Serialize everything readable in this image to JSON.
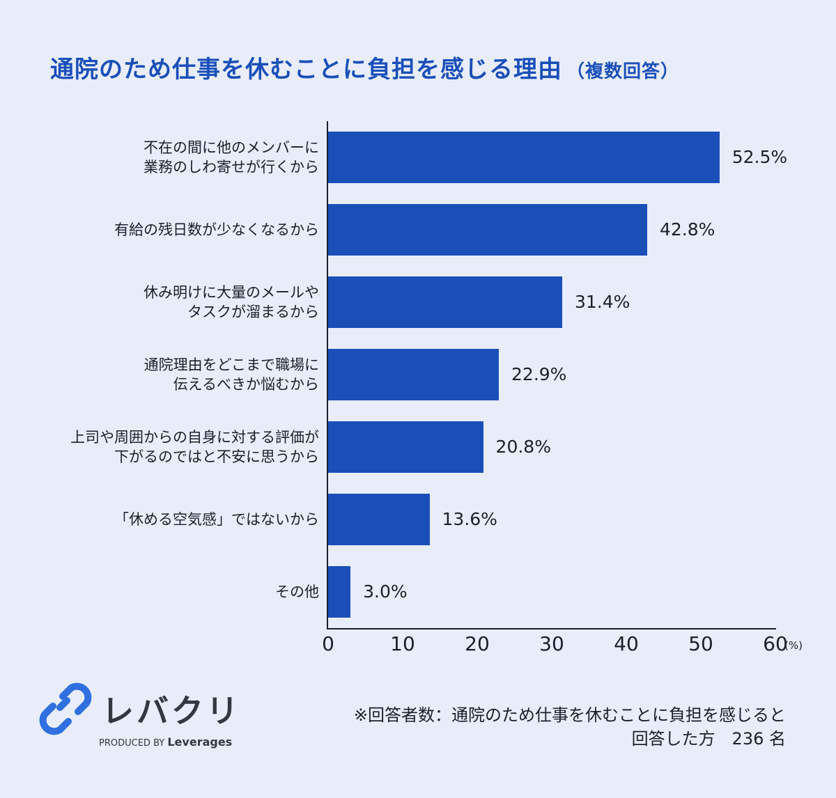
{
  "header": {
    "title": "通院のため仕事を休むことに負担を感じる理由",
    "subtitle": "（複数回答）"
  },
  "chart_data": {
    "type": "bar",
    "orientation": "horizontal",
    "title": "通院のため仕事を休むことに負担を感じる理由（複数回答）",
    "categories": [
      [
        "不在の間に他のメンバーに",
        "業務のしわ寄せが行くから"
      ],
      [
        "有給の残日数が少なくなるから"
      ],
      [
        "休み明けに大量のメールや",
        "タスクが溜まるから"
      ],
      [
        "通院理由をどこまで職場に",
        "伝えるべきか悩むから"
      ],
      [
        "上司や周囲からの自身に対する評価が",
        "下がるのではと不安に思うから"
      ],
      [
        "「休める空気感」ではないから"
      ],
      [
        "その他"
      ]
    ],
    "values": [
      52.5,
      42.8,
      31.4,
      22.9,
      20.8,
      13.6,
      3.0
    ],
    "value_labels": [
      "52.5%",
      "42.8%",
      "31.4%",
      "22.9%",
      "20.8%",
      "13.6%",
      "3.0%"
    ],
    "xlabel": "(%)",
    "ylabel": "",
    "xlim": [
      0,
      60
    ],
    "xticks": [
      "0",
      "10",
      "20",
      "30",
      "40",
      "50",
      "60"
    ],
    "grid": false,
    "legend": null,
    "bar_color": "#1a4fb8"
  },
  "footer": {
    "logo_text": "レバクリ",
    "produced_by": "PRODUCED BY",
    "brand": "Leverages",
    "note_line1": "※回答者数：通院のため仕事を休むことに負担を感じると",
    "note_line2": "回答した方　236 名"
  }
}
